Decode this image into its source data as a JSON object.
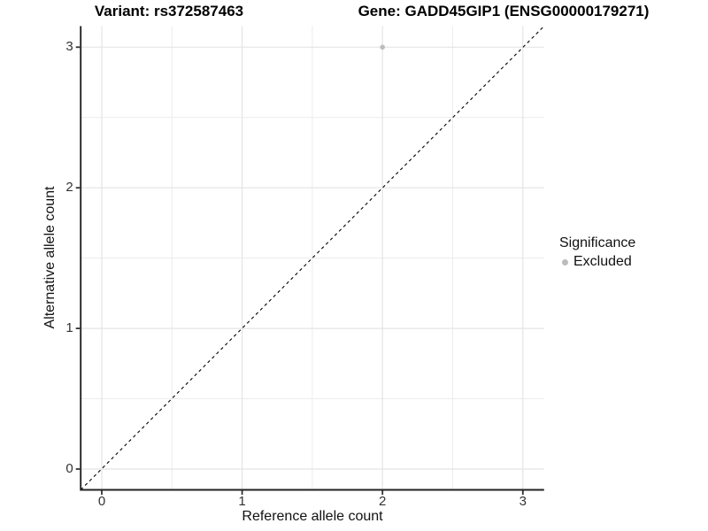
{
  "colors": {
    "background": "#ffffff",
    "point": "#bcbcbc",
    "grid_major": "#e4e4e4",
    "grid_minor": "#ececec",
    "axis_line": "#222222",
    "tick_mark": "#333333",
    "identity_line": "#000000"
  },
  "chart_data": {
    "type": "scatter",
    "title_left": "Variant: rs372587463",
    "title_right": "Gene: GADD45GIP1 (ENSG00000179271)",
    "xlabel": "Reference allele count",
    "ylabel": "Alternative allele count",
    "x_ticks": [
      0,
      1,
      2,
      3
    ],
    "y_ticks": [
      0,
      1,
      2,
      3
    ],
    "x_minor": [
      0.5,
      1.5,
      2.5
    ],
    "y_minor": [
      0.5,
      1.5,
      2.5
    ],
    "xlim": [
      -0.15,
      3.15
    ],
    "ylim": [
      -0.15,
      3.15
    ],
    "grid": "major and minor gridlines, white panel background",
    "points": [
      {
        "x": 2,
        "y": 3,
        "significance": "Excluded"
      }
    ],
    "identity_line": {
      "slope": 1,
      "intercept": 0,
      "style": "dashed"
    },
    "legend": {
      "title": "Significance",
      "position": "right",
      "items": [
        {
          "label": "Excluded",
          "color": "#bcbcbc"
        }
      ]
    }
  }
}
